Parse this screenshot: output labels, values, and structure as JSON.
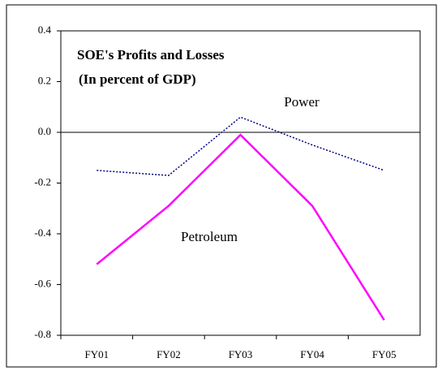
{
  "chart_data": {
    "type": "line",
    "title_lines": [
      "SOE's Profits and Losses",
      "(In percent of GDP)"
    ],
    "categories": [
      "FY01",
      "FY02",
      "FY03",
      "FY04",
      "FY05"
    ],
    "series": [
      {
        "name": "Power",
        "color": "#000080",
        "values": [
          -0.15,
          -0.17,
          0.06,
          -0.05,
          -0.15
        ]
      },
      {
        "name": "Petroleum",
        "color": "#ff00ff",
        "values": [
          -0.52,
          -0.29,
          -0.01,
          -0.29,
          -0.74
        ]
      }
    ],
    "ylim": [
      -0.8,
      0.4
    ],
    "yticks": [
      -0.8,
      -0.6,
      -0.4,
      -0.2,
      {
        "value": 0,
        "label": "0.0"
      },
      0.2,
      0.4
    ],
    "grid": false
  }
}
